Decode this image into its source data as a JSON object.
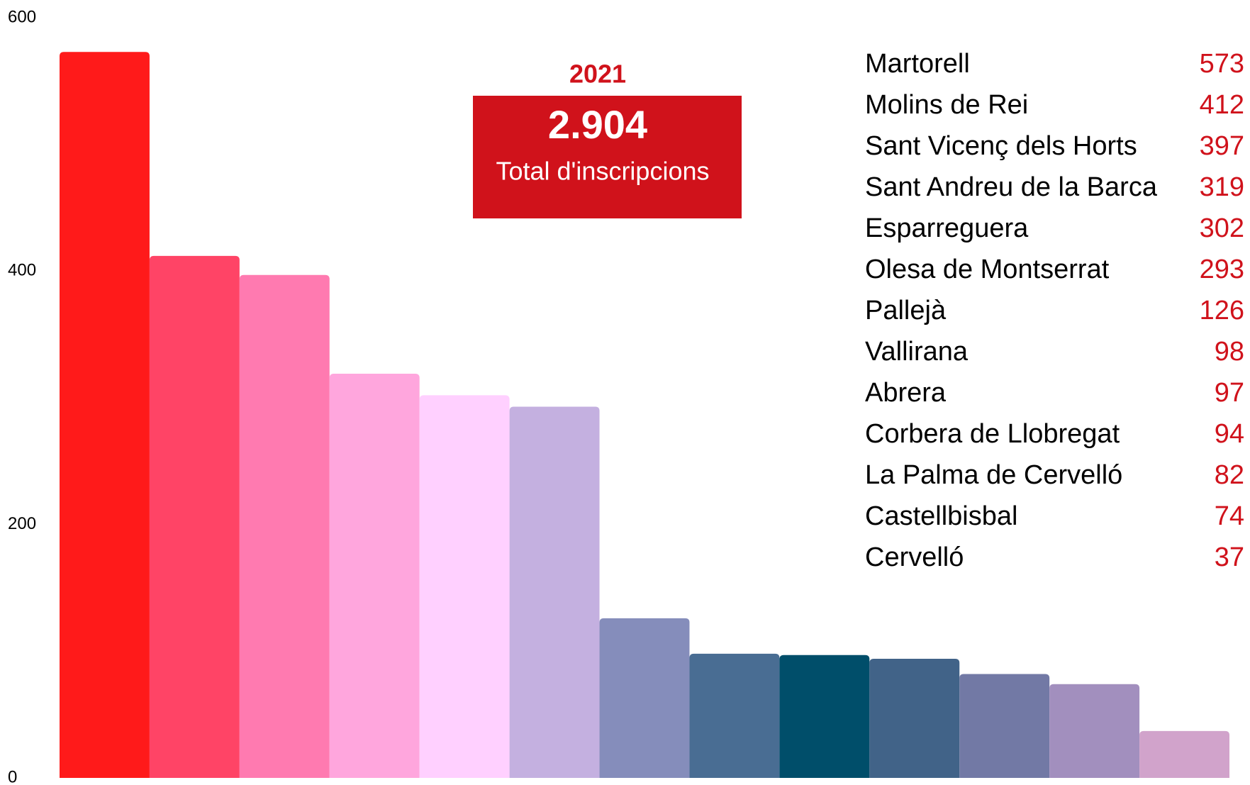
{
  "chart_data": {
    "type": "bar",
    "categories": [
      "Martorell",
      "Molins de Rei",
      "Sant Vicenç dels Horts",
      "Sant Andreu de la Barca",
      "Esparreguera",
      "Olesa de Montserrat",
      "Pallejà",
      "Vallirana",
      "Abrera",
      "Corbera de Llobregat",
      "La Palma de Cervelló",
      "Castellbisbal",
      "Cervelló"
    ],
    "values": [
      573,
      412,
      397,
      319,
      302,
      293,
      126,
      98,
      97,
      94,
      82,
      74,
      37
    ],
    "colors": [
      "#ff1a1a",
      "#ff4466",
      "#ff7ab0",
      "#ffa6dd",
      "#ffd0ff",
      "#c4b0e0",
      "#858dbb",
      "#496d93",
      "#004e6a",
      "#416388",
      "#7279a5",
      "#a28fbe",
      "#d1a3cb"
    ],
    "value_color": "#d0121b",
    "ylim": [
      0,
      600
    ],
    "yticks": [
      0,
      200,
      400,
      600
    ],
    "grid": false,
    "annotation": {
      "year": "2021",
      "total": "2.904",
      "text": "Total d'inscripcions",
      "color": "#d0121b"
    }
  }
}
